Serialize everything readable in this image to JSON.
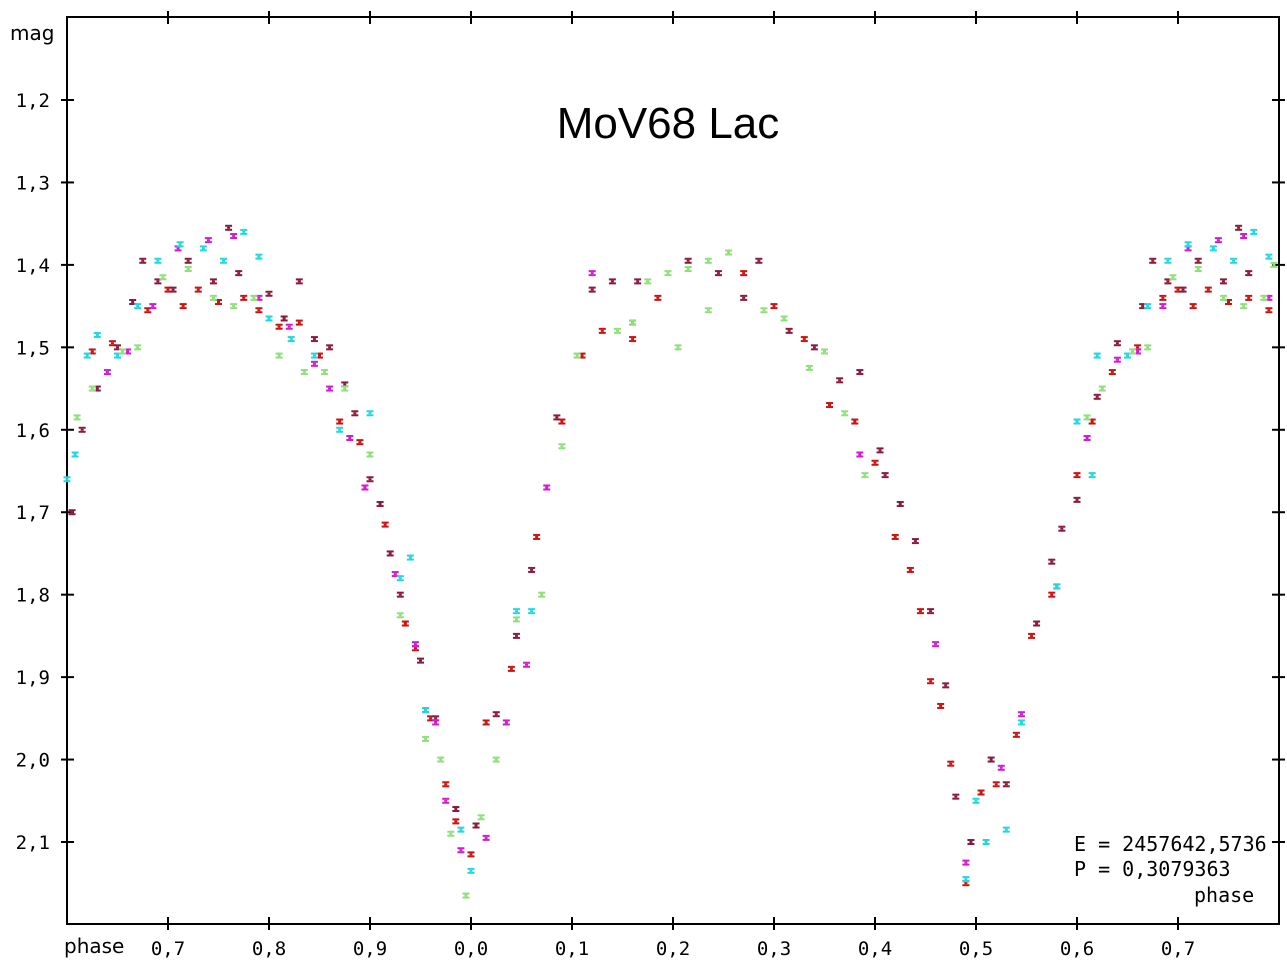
{
  "chart_data": {
    "type": "scatter",
    "title": "MoV68 Lac",
    "xlabel": "phase",
    "xlabel_right": "phase",
    "ylabel": "mag",
    "xlim": [
      0.6,
      1.8
    ],
    "ylim": [
      2.2,
      1.1
    ],
    "y_inverted": true,
    "grid": false,
    "x_ticks": [
      {
        "pos": 0.7,
        "label": "0,7"
      },
      {
        "pos": 0.8,
        "label": "0,8"
      },
      {
        "pos": 0.9,
        "label": "0,9"
      },
      {
        "pos": 1.0,
        "label": "0,0"
      },
      {
        "pos": 1.1,
        "label": "0,1"
      },
      {
        "pos": 1.2,
        "label": "0,2"
      },
      {
        "pos": 1.3,
        "label": "0,3"
      },
      {
        "pos": 1.4,
        "label": "0,4"
      },
      {
        "pos": 1.5,
        "label": "0,5"
      },
      {
        "pos": 1.6,
        "label": "0,6"
      },
      {
        "pos": 1.7,
        "label": "0,7"
      }
    ],
    "y_ticks": [
      {
        "value": 1.2,
        "label": "1,2"
      },
      {
        "value": 1.3,
        "label": "1,3"
      },
      {
        "value": 1.4,
        "label": "1,4"
      },
      {
        "value": 1.5,
        "label": "1,5"
      },
      {
        "value": 1.6,
        "label": "1,6"
      },
      {
        "value": 1.7,
        "label": "1,7"
      },
      {
        "value": 1.8,
        "label": "1,8"
      },
      {
        "value": 1.9,
        "label": "1,9"
      },
      {
        "value": 2.0,
        "label": "2,0"
      },
      {
        "value": 2.1,
        "label": "2,1"
      }
    ],
    "annotations": {
      "epoch": "E = 2457642,5736",
      "period": "P = 0,3079363"
    },
    "series": [
      {
        "color": "#cc1111",
        "points": [
          [
            0.625,
            1.505
          ],
          [
            0.645,
            1.495
          ],
          [
            0.68,
            1.455
          ],
          [
            0.7,
            1.43
          ],
          [
            0.715,
            1.45
          ],
          [
            0.73,
            1.43
          ],
          [
            0.75,
            1.445
          ],
          [
            0.775,
            1.44
          ],
          [
            0.79,
            1.455
          ],
          [
            0.81,
            1.475
          ],
          [
            0.83,
            1.47
          ],
          [
            0.85,
            1.51
          ],
          [
            0.87,
            1.59
          ],
          [
            0.89,
            1.615
          ],
          [
            0.915,
            1.715
          ],
          [
            0.935,
            1.835
          ],
          [
            0.945,
            1.865
          ],
          [
            0.96,
            1.95
          ],
          [
            0.975,
            2.03
          ],
          [
            0.985,
            2.075
          ],
          [
            1.0,
            2.115
          ],
          [
            1.015,
            1.955
          ],
          [
            1.04,
            1.89
          ],
          [
            1.065,
            1.73
          ],
          [
            1.09,
            1.59
          ],
          [
            1.11,
            1.51
          ],
          [
            1.13,
            1.48
          ],
          [
            1.16,
            1.49
          ],
          [
            1.185,
            1.44
          ],
          [
            1.27,
            1.41
          ],
          [
            1.3,
            1.45
          ],
          [
            1.33,
            1.49
          ],
          [
            1.355,
            1.57
          ],
          [
            1.38,
            1.59
          ],
          [
            1.4,
            1.64
          ],
          [
            1.42,
            1.73
          ],
          [
            1.435,
            1.77
          ],
          [
            1.445,
            1.82
          ],
          [
            1.455,
            1.905
          ],
          [
            1.465,
            1.935
          ],
          [
            1.475,
            2.005
          ],
          [
            1.49,
            2.15
          ],
          [
            1.505,
            2.04
          ],
          [
            1.52,
            2.03
          ],
          [
            1.54,
            1.97
          ],
          [
            1.555,
            1.85
          ],
          [
            1.575,
            1.8
          ],
          [
            1.6,
            1.655
          ],
          [
            1.615,
            1.59
          ],
          [
            1.635,
            1.53
          ],
          [
            1.66,
            1.5
          ],
          [
            1.685,
            1.44
          ],
          [
            1.7,
            1.43
          ],
          [
            1.715,
            1.45
          ],
          [
            1.73,
            1.43
          ],
          [
            1.75,
            1.445
          ],
          [
            1.77,
            1.44
          ],
          [
            1.79,
            1.455
          ]
        ]
      },
      {
        "color": "#8b1a3a",
        "points": [
          [
            0.605,
            1.7
          ],
          [
            0.615,
            1.6
          ],
          [
            0.63,
            1.55
          ],
          [
            0.65,
            1.5
          ],
          [
            0.665,
            1.445
          ],
          [
            0.675,
            1.395
          ],
          [
            0.69,
            1.42
          ],
          [
            0.705,
            1.43
          ],
          [
            0.72,
            1.395
          ],
          [
            0.745,
            1.42
          ],
          [
            0.76,
            1.355
          ],
          [
            0.77,
            1.41
          ],
          [
            0.8,
            1.435
          ],
          [
            0.815,
            1.465
          ],
          [
            0.83,
            1.42
          ],
          [
            0.845,
            1.49
          ],
          [
            0.86,
            1.5
          ],
          [
            0.875,
            1.545
          ],
          [
            0.885,
            1.58
          ],
          [
            0.9,
            1.66
          ],
          [
            0.91,
            1.69
          ],
          [
            0.92,
            1.75
          ],
          [
            0.93,
            1.8
          ],
          [
            0.95,
            1.88
          ],
          [
            0.965,
            1.95
          ],
          [
            0.985,
            2.06
          ],
          [
            1.005,
            2.08
          ],
          [
            1.025,
            1.945
          ],
          [
            1.045,
            1.85
          ],
          [
            1.06,
            1.77
          ],
          [
            1.085,
            1.585
          ],
          [
            1.12,
            1.43
          ],
          [
            1.14,
            1.42
          ],
          [
            1.165,
            1.42
          ],
          [
            1.215,
            1.395
          ],
          [
            1.245,
            1.41
          ],
          [
            1.27,
            1.44
          ],
          [
            1.285,
            1.395
          ],
          [
            1.315,
            1.48
          ],
          [
            1.34,
            1.5
          ],
          [
            1.365,
            1.54
          ],
          [
            1.385,
            1.53
          ],
          [
            1.405,
            1.625
          ],
          [
            1.41,
            1.655
          ],
          [
            1.425,
            1.69
          ],
          [
            1.44,
            1.735
          ],
          [
            1.455,
            1.82
          ],
          [
            1.47,
            1.91
          ],
          [
            1.48,
            2.045
          ],
          [
            1.495,
            2.1
          ],
          [
            1.515,
            2.0
          ],
          [
            1.53,
            2.03
          ],
          [
            1.56,
            1.835
          ],
          [
            1.575,
            1.76
          ],
          [
            1.585,
            1.72
          ],
          [
            1.6,
            1.685
          ],
          [
            1.62,
            1.56
          ],
          [
            1.64,
            1.495
          ],
          [
            1.665,
            1.45
          ],
          [
            1.675,
            1.395
          ],
          [
            1.69,
            1.42
          ],
          [
            1.705,
            1.43
          ],
          [
            1.72,
            1.395
          ],
          [
            1.745,
            1.42
          ],
          [
            1.76,
            1.355
          ],
          [
            1.77,
            1.41
          ]
        ]
      },
      {
        "color": "#d11ad1",
        "points": [
          [
            0.64,
            1.53
          ],
          [
            0.66,
            1.505
          ],
          [
            0.685,
            1.45
          ],
          [
            0.71,
            1.38
          ],
          [
            0.74,
            1.37
          ],
          [
            0.765,
            1.365
          ],
          [
            0.79,
            1.44
          ],
          [
            0.82,
            1.475
          ],
          [
            0.845,
            1.52
          ],
          [
            0.86,
            1.55
          ],
          [
            0.88,
            1.61
          ],
          [
            0.895,
            1.67
          ],
          [
            0.925,
            1.775
          ],
          [
            0.945,
            1.86
          ],
          [
            0.955,
            1.94
          ],
          [
            0.965,
            1.955
          ],
          [
            0.975,
            2.05
          ],
          [
            0.99,
            2.11
          ],
          [
            1.015,
            2.095
          ],
          [
            1.035,
            1.955
          ],
          [
            1.055,
            1.885
          ],
          [
            1.075,
            1.67
          ],
          [
            1.12,
            1.41
          ],
          [
            1.16,
            1.47
          ],
          [
            1.385,
            1.63
          ],
          [
            1.46,
            1.86
          ],
          [
            1.49,
            2.125
          ],
          [
            1.525,
            2.01
          ],
          [
            1.545,
            1.945
          ],
          [
            1.58,
            1.79
          ],
          [
            1.61,
            1.61
          ],
          [
            1.64,
            1.515
          ],
          [
            1.66,
            1.505
          ],
          [
            1.685,
            1.45
          ],
          [
            1.71,
            1.38
          ],
          [
            1.74,
            1.37
          ],
          [
            1.765,
            1.365
          ],
          [
            1.79,
            1.44
          ]
        ]
      },
      {
        "color": "#22d8e0",
        "points": [
          [
            0.6,
            1.66
          ],
          [
            0.608,
            1.63
          ],
          [
            0.62,
            1.51
          ],
          [
            0.63,
            1.485
          ],
          [
            0.65,
            1.51
          ],
          [
            0.67,
            1.45
          ],
          [
            0.69,
            1.395
          ],
          [
            0.712,
            1.375
          ],
          [
            0.735,
            1.38
          ],
          [
            0.755,
            1.395
          ],
          [
            0.775,
            1.36
          ],
          [
            0.79,
            1.39
          ],
          [
            0.8,
            1.465
          ],
          [
            0.822,
            1.49
          ],
          [
            0.845,
            1.51
          ],
          [
            0.87,
            1.6
          ],
          [
            0.9,
            1.58
          ],
          [
            0.93,
            1.78
          ],
          [
            0.94,
            1.755
          ],
          [
            0.955,
            1.94
          ],
          [
            0.99,
            2.085
          ],
          [
            1.0,
            2.135
          ],
          [
            1.045,
            1.82
          ],
          [
            1.06,
            1.82
          ],
          [
            1.49,
            2.145
          ],
          [
            1.5,
            2.05
          ],
          [
            1.51,
            2.1
          ],
          [
            1.53,
            2.085
          ],
          [
            1.545,
            1.955
          ],
          [
            1.58,
            1.79
          ],
          [
            1.6,
            1.59
          ],
          [
            1.615,
            1.655
          ],
          [
            1.62,
            1.51
          ],
          [
            1.65,
            1.51
          ],
          [
            1.67,
            1.45
          ],
          [
            1.69,
            1.395
          ],
          [
            1.71,
            1.375
          ],
          [
            1.735,
            1.38
          ],
          [
            1.755,
            1.395
          ],
          [
            1.775,
            1.36
          ],
          [
            1.79,
            1.39
          ]
        ]
      },
      {
        "color": "#8fe07a",
        "points": [
          [
            0.61,
            1.585
          ],
          [
            0.625,
            1.55
          ],
          [
            0.655,
            1.505
          ],
          [
            0.67,
            1.5
          ],
          [
            0.695,
            1.415
          ],
          [
            0.72,
            1.405
          ],
          [
            0.745,
            1.44
          ],
          [
            0.765,
            1.45
          ],
          [
            0.785,
            1.44
          ],
          [
            0.81,
            1.51
          ],
          [
            0.835,
            1.53
          ],
          [
            0.855,
            1.53
          ],
          [
            0.875,
            1.55
          ],
          [
            0.9,
            1.63
          ],
          [
            0.93,
            1.825
          ],
          [
            0.955,
            1.975
          ],
          [
            0.97,
            2.0
          ],
          [
            0.98,
            2.09
          ],
          [
            0.995,
            2.165
          ],
          [
            1.01,
            2.07
          ],
          [
            1.025,
            2.0
          ],
          [
            1.045,
            1.83
          ],
          [
            1.07,
            1.8
          ],
          [
            1.09,
            1.62
          ],
          [
            1.105,
            1.51
          ],
          [
            1.145,
            1.48
          ],
          [
            1.16,
            1.47
          ],
          [
            1.175,
            1.42
          ],
          [
            1.195,
            1.41
          ],
          [
            1.215,
            1.405
          ],
          [
            1.235,
            1.395
          ],
          [
            1.255,
            1.385
          ],
          [
            1.205,
            1.5
          ],
          [
            1.235,
            1.455
          ],
          [
            1.29,
            1.455
          ],
          [
            1.31,
            1.465
          ],
          [
            1.335,
            1.525
          ],
          [
            1.35,
            1.505
          ],
          [
            1.37,
            1.58
          ],
          [
            1.39,
            1.655
          ],
          [
            1.61,
            1.585
          ],
          [
            1.625,
            1.55
          ],
          [
            1.655,
            1.505
          ],
          [
            1.67,
            1.5
          ],
          [
            1.695,
            1.415
          ],
          [
            1.72,
            1.405
          ],
          [
            1.745,
            1.44
          ],
          [
            1.765,
            1.45
          ],
          [
            1.785,
            1.44
          ],
          [
            1.795,
            1.4
          ]
        ]
      }
    ]
  }
}
